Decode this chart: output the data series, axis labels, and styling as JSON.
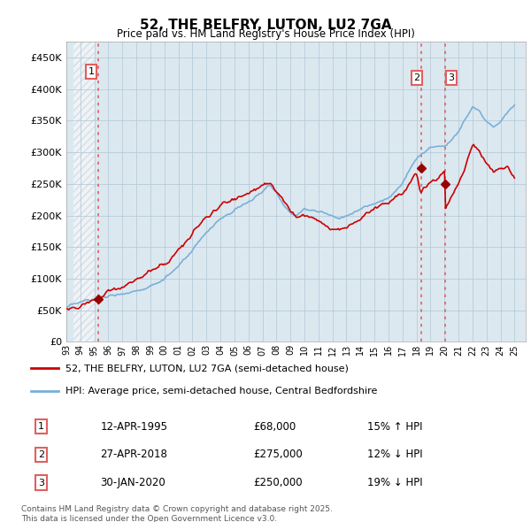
{
  "title": "52, THE BELFRY, LUTON, LU2 7GA",
  "subtitle": "Price paid vs. HM Land Registry's House Price Index (HPI)",
  "ytick_values": [
    0,
    50000,
    100000,
    150000,
    200000,
    250000,
    300000,
    350000,
    400000,
    450000
  ],
  "ylim": [
    0,
    475000
  ],
  "xlim_start": 1993.5,
  "xlim_end": 2025.8,
  "red_line_color": "#cc0000",
  "blue_line_color": "#7ab0d8",
  "marker_color": "#990000",
  "vline_color": "#e06060",
  "background_color": "#dce8f0",
  "grid_color": "#b8ccd8",
  "legend_label_red": "52, THE BELFRY, LUTON, LU2 7GA (semi-detached house)",
  "legend_label_blue": "HPI: Average price, semi-detached house, Central Bedfordshire",
  "transaction1_date": "12-APR-1995",
  "transaction1_price": "£68,000",
  "transaction1_hpi": "15% ↑ HPI",
  "transaction1_year": 1995.28,
  "transaction1_value": 68000,
  "transaction2_date": "27-APR-2018",
  "transaction2_price": "£275,000",
  "transaction2_hpi": "12% ↓ HPI",
  "transaction2_year": 2018.32,
  "transaction2_value": 275000,
  "transaction3_date": "30-JAN-2020",
  "transaction3_price": "£250,000",
  "transaction3_hpi": "19% ↓ HPI",
  "transaction3_year": 2020.08,
  "transaction3_value": 250000,
  "footnote": "Contains HM Land Registry data © Crown copyright and database right 2025.\nThis data is licensed under the Open Government Licence v3.0."
}
